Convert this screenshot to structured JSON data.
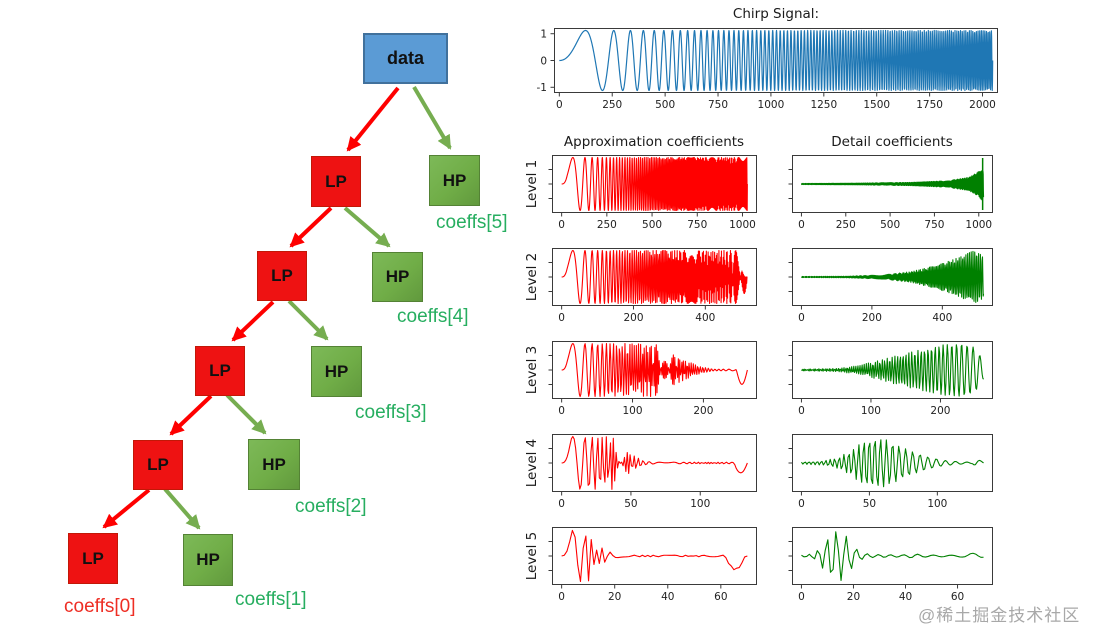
{
  "tree": {
    "data_label": "data",
    "lp_label": "LP",
    "hp_label": "HP",
    "coeff_labels": [
      "coeffs[5]",
      "coeffs[4]",
      "coeffs[3]",
      "coeffs[2]",
      "coeffs[1]",
      "coeffs[0]"
    ]
  },
  "colors": {
    "data_box": "#5b9bd5",
    "data_box_border": "#41719c",
    "lp_box": "#ee1212",
    "lp_box_border": "#c21807",
    "hp_box": "#70ad47",
    "hp_box_border": "#548235",
    "red_arrow": "#fe0000",
    "green_arrow": "#76ad50",
    "coeff_green": "#27ae60",
    "coeff_red": "#ee2e24",
    "chirp_line": "#1f77b4",
    "approx_line": "#ff0000",
    "detail_line": "#008000"
  },
  "watermark": "@稀土掘金技术社区",
  "chart_data": {
    "figure": "wavelet decomposition of a chirp signal",
    "type": "line",
    "column_titles": {
      "approx": "Approximation coefficients",
      "detail": "Detail coefficients"
    },
    "row_labels": [
      "Level 1",
      "Level 2",
      "Level 3",
      "Level 4",
      "Level 5"
    ],
    "plots": [
      {
        "id": "chirp",
        "type": "line",
        "title": "Chirp Signal:",
        "color": "#1f77b4",
        "line_width": 1.2,
        "n": 2048,
        "xmax": 2048,
        "xticks": [
          0,
          250,
          500,
          750,
          1000,
          1250,
          1500,
          1750,
          2000
        ],
        "yticks": [
          1,
          0,
          -1
        ],
        "ylim": [
          -1.12,
          1.12
        ],
        "signal": {
          "kind": "chirp",
          "cycles": 120,
          "power": 2.2
        },
        "envelope": [
          [
            0,
            1
          ],
          [
            1,
            1
          ]
        ]
      },
      {
        "id": "a1",
        "type": "line",
        "level": 1,
        "column": "approx",
        "color": "#ff0000",
        "n": 1027,
        "xmax": 1027,
        "xticks": [
          0,
          250,
          500,
          750,
          1000
        ],
        "signal": {
          "kind": "chirp",
          "cycles": 120,
          "power": 2.2
        },
        "envelope": [
          [
            0,
            0.3
          ],
          [
            0.03,
            1
          ],
          [
            1,
            1
          ]
        ]
      },
      {
        "id": "d1",
        "type": "line",
        "level": 1,
        "column": "detail",
        "color": "#008000",
        "n": 1027,
        "xmax": 1027,
        "xticks": [
          0,
          250,
          500,
          750,
          1000
        ],
        "signal": {
          "kind": "osc",
          "f0": 0.45,
          "f1": 0.2
        },
        "envelope": [
          [
            0,
            0.02
          ],
          [
            0.3,
            0.03
          ],
          [
            0.6,
            0.06
          ],
          [
            0.8,
            0.12
          ],
          [
            0.92,
            0.25
          ],
          [
            0.97,
            0.45
          ],
          [
            0.99,
            0.6
          ],
          [
            1,
            0.5
          ]
        ],
        "spike": 0.995
      },
      {
        "id": "a2",
        "type": "line",
        "level": 2,
        "column": "approx",
        "color": "#ff0000",
        "n": 517,
        "xmax": 517,
        "xticks": [
          0,
          200,
          400
        ],
        "signal": {
          "kind": "chirp",
          "cycles": 120,
          "power": 2.2
        },
        "envelope": [
          [
            0,
            0.3
          ],
          [
            0.03,
            1
          ],
          [
            0.97,
            1
          ],
          [
            1,
            0.9
          ]
        ],
        "dips": [
          [
            0.97,
            1,
            -0.3
          ]
        ]
      },
      {
        "id": "d2",
        "type": "line",
        "level": 2,
        "column": "detail",
        "color": "#008000",
        "n": 517,
        "xmax": 517,
        "xticks": [
          0,
          200,
          400
        ],
        "signal": {
          "kind": "osc",
          "f0": 0.45,
          "f1": 0.18
        },
        "envelope": [
          [
            0,
            0.02
          ],
          [
            0.25,
            0.03
          ],
          [
            0.45,
            0.08
          ],
          [
            0.6,
            0.2
          ],
          [
            0.75,
            0.45
          ],
          [
            0.85,
            0.7
          ],
          [
            0.95,
            1
          ],
          [
            1,
            0.8
          ]
        ]
      },
      {
        "id": "a3",
        "type": "line",
        "level": 3,
        "column": "approx",
        "color": "#ff0000",
        "n": 262,
        "xmax": 262,
        "xticks": [
          0,
          100,
          200
        ],
        "signal": {
          "kind": "chirp",
          "cycles": 120,
          "power": 2.2
        },
        "envelope": [
          [
            0,
            0.3
          ],
          [
            0.03,
            1
          ],
          [
            0.5,
            1
          ],
          [
            0.62,
            0.5
          ],
          [
            0.75,
            0.12
          ],
          [
            0.82,
            0.03
          ],
          [
            1,
            0.03
          ]
        ],
        "dips": [
          [
            0.94,
            1,
            -0.55
          ]
        ]
      },
      {
        "id": "d3",
        "type": "line",
        "level": 3,
        "column": "detail",
        "color": "#008000",
        "n": 262,
        "xmax": 262,
        "xticks": [
          0,
          100,
          200
        ],
        "signal": {
          "kind": "osc",
          "f0": 0.45,
          "f1": 0.09
        },
        "envelope": [
          [
            0,
            0.03
          ],
          [
            0.2,
            0.06
          ],
          [
            0.3,
            0.15
          ],
          [
            0.42,
            0.35
          ],
          [
            0.55,
            0.6
          ],
          [
            0.68,
            0.8
          ],
          [
            0.78,
            0.95
          ],
          [
            0.88,
            1
          ],
          [
            0.95,
            0.85
          ],
          [
            0.98,
            0.55
          ],
          [
            1,
            0.35
          ]
        ]
      },
      {
        "id": "a4",
        "type": "line",
        "level": 4,
        "column": "approx",
        "color": "#ff0000",
        "n": 134,
        "xmax": 134,
        "xticks": [
          0,
          50,
          100
        ],
        "signal": {
          "kind": "chirp",
          "cycles": 120,
          "power": 2.2
        },
        "envelope": [
          [
            0,
            0.3
          ],
          [
            0.05,
            1
          ],
          [
            0.28,
            1
          ],
          [
            0.36,
            0.4
          ],
          [
            0.44,
            0.08
          ],
          [
            0.5,
            0.03
          ],
          [
            1,
            0.03
          ]
        ],
        "dips": [
          [
            0.93,
            1,
            -0.4
          ]
        ]
      },
      {
        "id": "d4",
        "type": "line",
        "level": 4,
        "column": "detail",
        "color": "#008000",
        "n": 134,
        "xmax": 134,
        "xticks": [
          0,
          50,
          100
        ],
        "signal": {
          "kind": "osc",
          "f0": 0.35,
          "f1": 0.09
        },
        "envelope": [
          [
            0,
            0.04
          ],
          [
            0.12,
            0.08
          ],
          [
            0.2,
            0.2
          ],
          [
            0.28,
            0.5
          ],
          [
            0.35,
            0.9
          ],
          [
            0.4,
            1
          ],
          [
            0.48,
            0.85
          ],
          [
            0.55,
            0.6
          ],
          [
            0.62,
            0.4
          ],
          [
            0.7,
            0.22
          ],
          [
            0.78,
            0.1
          ],
          [
            0.88,
            0.04
          ],
          [
            0.94,
            0.03
          ],
          [
            0.96,
            0.15
          ],
          [
            1,
            0.04
          ]
        ]
      },
      {
        "id": "a5",
        "type": "line",
        "level": 5,
        "column": "approx",
        "color": "#ff0000",
        "n": 70,
        "xmax": 70,
        "xticks": [
          0,
          20,
          40,
          60
        ],
        "signal": {
          "kind": "chirp",
          "cycles": 120,
          "power": 2.2
        },
        "envelope": [
          [
            0,
            0.25
          ],
          [
            0.06,
            1
          ],
          [
            0.17,
            0.95
          ],
          [
            0.22,
            0.3
          ],
          [
            0.28,
            0.08
          ],
          [
            0.34,
            0.03
          ],
          [
            1,
            0.03
          ]
        ],
        "dips": [
          [
            0.88,
            0.99,
            -0.5
          ]
        ]
      },
      {
        "id": "d5",
        "type": "line",
        "level": 5,
        "column": "detail",
        "color": "#008000",
        "n": 70,
        "xmax": 70,
        "xticks": [
          0,
          20,
          40,
          60
        ],
        "signal": {
          "kind": "osc",
          "f0": 0.32,
          "f1": 0.1
        },
        "envelope": [
          [
            0,
            0.03
          ],
          [
            0.06,
            0.08
          ],
          [
            0.1,
            0.3
          ],
          [
            0.14,
            0.7
          ],
          [
            0.18,
            1
          ],
          [
            0.23,
            0.9
          ],
          [
            0.28,
            0.45
          ],
          [
            0.32,
            0.15
          ],
          [
            0.38,
            0.06
          ],
          [
            0.55,
            0.04
          ],
          [
            0.62,
            0.08
          ],
          [
            0.68,
            0.04
          ],
          [
            0.8,
            0.03
          ],
          [
            0.88,
            0.04
          ],
          [
            0.93,
            0.1
          ],
          [
            0.97,
            0.12
          ],
          [
            1,
            0.05
          ]
        ]
      }
    ]
  }
}
